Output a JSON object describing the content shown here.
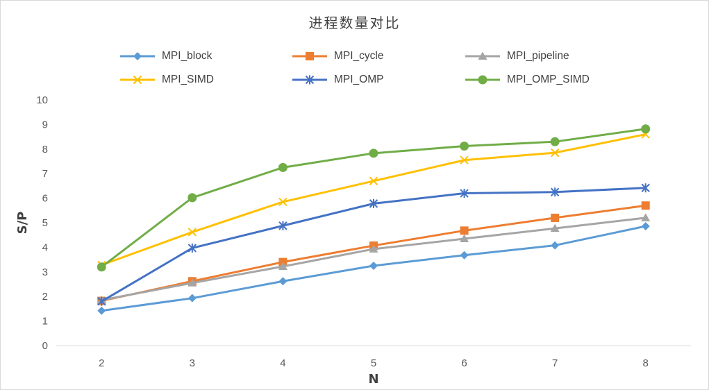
{
  "chart_data": {
    "type": "line",
    "title": "进程数量对比",
    "xlabel": "N",
    "ylabel": "S/P",
    "categories": [
      "2",
      "3",
      "4",
      "5",
      "6",
      "7",
      "8"
    ],
    "ylim": [
      0,
      10
    ],
    "yticks": [
      "0",
      "1",
      "2",
      "3",
      "4",
      "5",
      "6",
      "7",
      "8",
      "9",
      "10"
    ],
    "grid": false,
    "legend_position": "top",
    "series": [
      {
        "name": "MPI_block",
        "color": "#5B9BD5",
        "marker": "diamond",
        "values": [
          1.42,
          1.93,
          2.62,
          3.25,
          3.68,
          4.08,
          4.86
        ]
      },
      {
        "name": "MPI_cycle",
        "color": "#ED7D31",
        "marker": "square",
        "values": [
          1.82,
          2.62,
          3.4,
          4.07,
          4.68,
          5.2,
          5.7
        ]
      },
      {
        "name": "MPI_pipeline",
        "color": "#A5A5A5",
        "marker": "triangle",
        "values": [
          1.85,
          2.55,
          3.22,
          3.93,
          4.35,
          4.77,
          5.2
        ]
      },
      {
        "name": "MPI_SIMD",
        "color": "#FFC000",
        "marker": "x",
        "values": [
          3.28,
          4.62,
          5.85,
          6.7,
          7.55,
          7.85,
          8.6
        ]
      },
      {
        "name": "MPI_OMP",
        "color": "#4472C4",
        "marker": "asterisk",
        "values": [
          1.8,
          3.97,
          4.88,
          5.78,
          6.2,
          6.25,
          6.42
        ]
      },
      {
        "name": "MPI_OMP_SIMD",
        "color": "#70AD47",
        "marker": "circle",
        "values": [
          3.2,
          6.02,
          7.25,
          7.83,
          8.12,
          8.3,
          8.82
        ]
      }
    ]
  }
}
